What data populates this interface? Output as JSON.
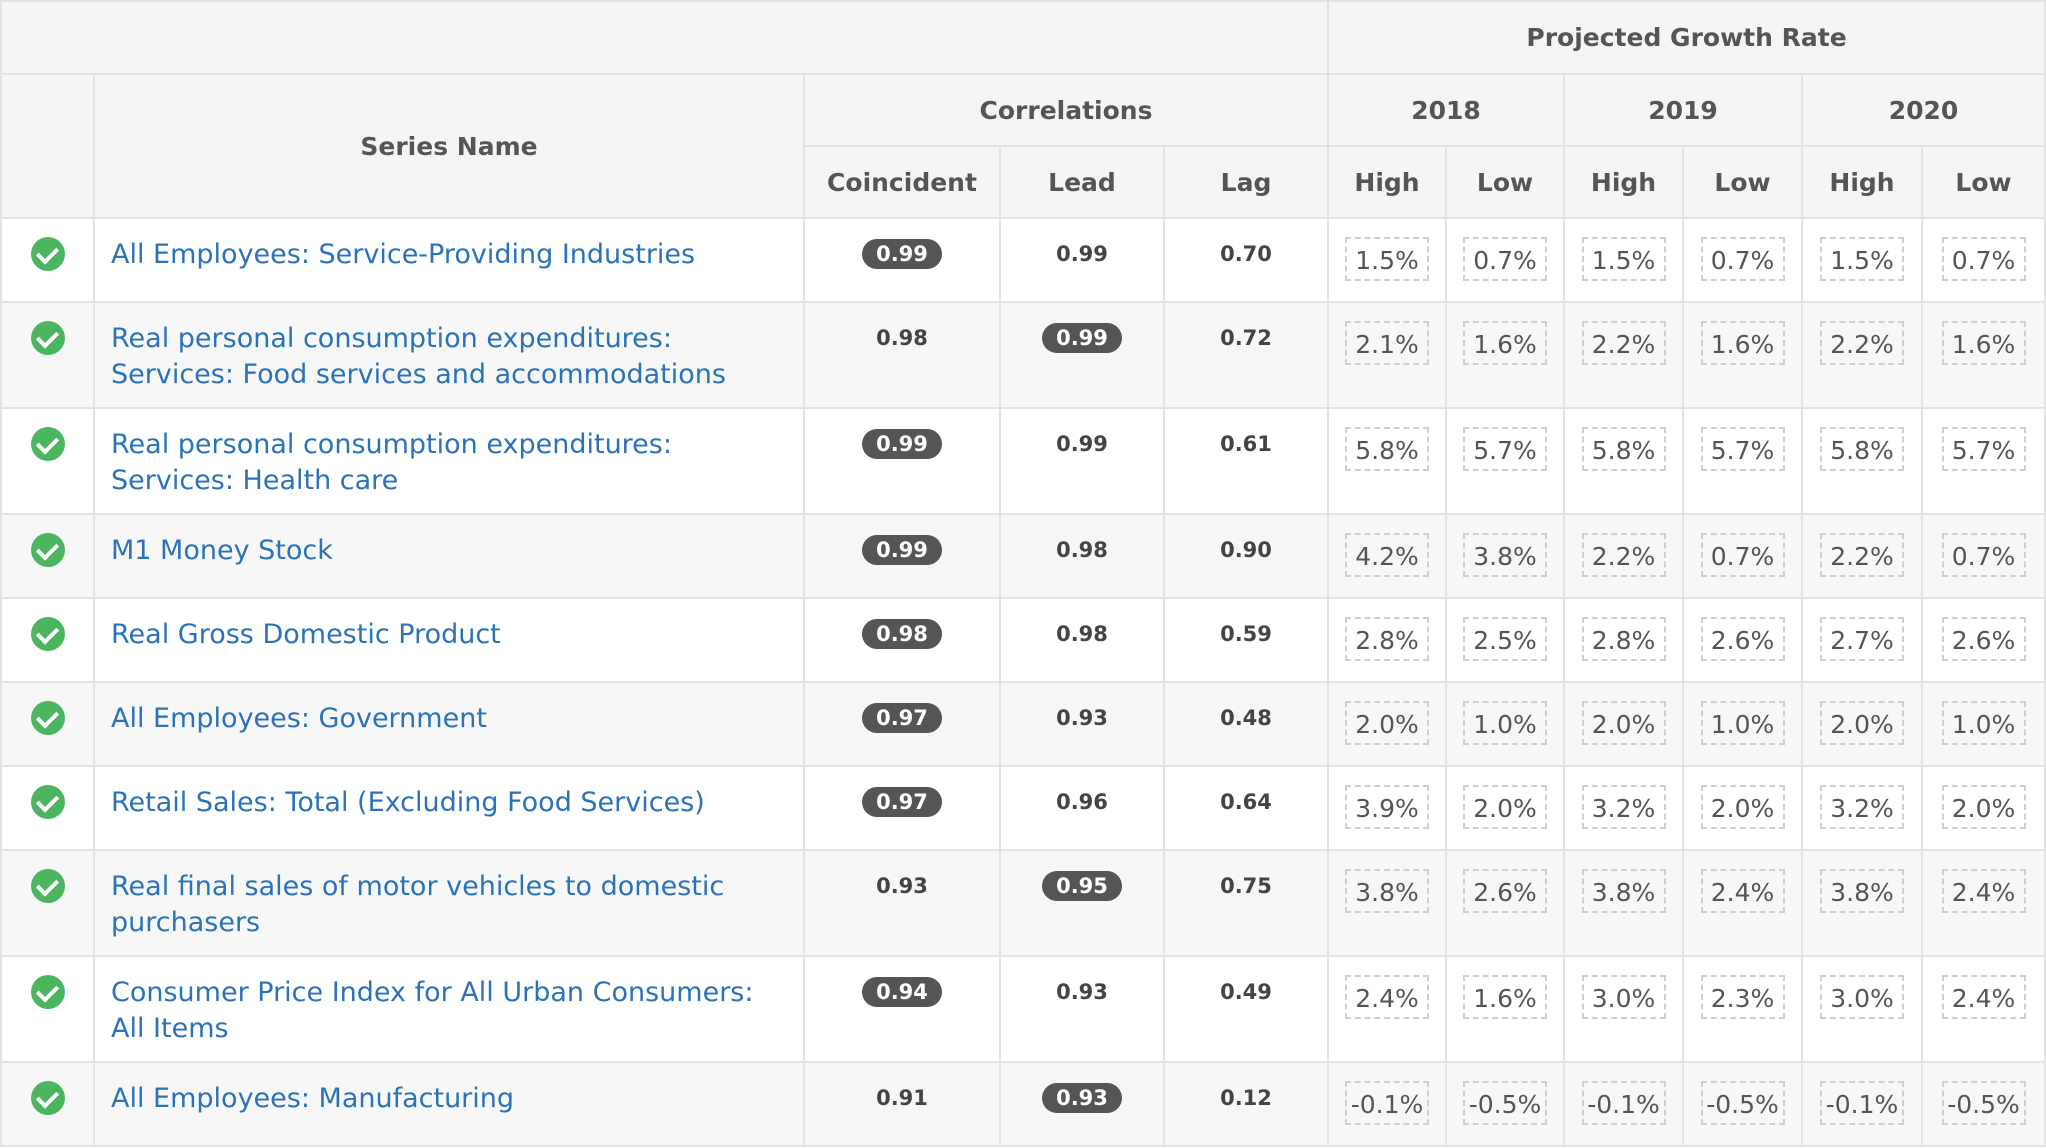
{
  "header": {
    "projected_growth_rate": "Projected Growth Rate",
    "series_name": "Series Name",
    "correlations": "Correlations",
    "coincident": "Coincident",
    "lead": "Lead",
    "lag": "Lag",
    "years": [
      "2018",
      "2019",
      "2020"
    ],
    "high": "High",
    "low": "Low"
  },
  "colors": {
    "link": "#2a73b8",
    "check": "#4cb560",
    "pill": "#555555"
  },
  "rows": [
    {
      "name": "All Employees: Service-Providing Industries",
      "coincident": "0.99",
      "lead": "0.99",
      "lag": "0.70",
      "highlight": "coincident",
      "growth": [
        "1.5%",
        "0.7%",
        "1.5%",
        "0.7%",
        "1.5%",
        "0.7%"
      ]
    },
    {
      "name": "Real personal consumption expenditures: Services: Food services and accommodations",
      "coincident": "0.98",
      "lead": "0.99",
      "lag": "0.72",
      "highlight": "lead",
      "growth": [
        "2.1%",
        "1.6%",
        "2.2%",
        "1.6%",
        "2.2%",
        "1.6%"
      ]
    },
    {
      "name": "Real personal consumption expenditures: Services: Health care",
      "coincident": "0.99",
      "lead": "0.99",
      "lag": "0.61",
      "highlight": "coincident",
      "growth": [
        "5.8%",
        "5.7%",
        "5.8%",
        "5.7%",
        "5.8%",
        "5.7%"
      ]
    },
    {
      "name": "M1 Money Stock",
      "coincident": "0.99",
      "lead": "0.98",
      "lag": "0.90",
      "highlight": "coincident",
      "growth": [
        "4.2%",
        "3.8%",
        "2.2%",
        "0.7%",
        "2.2%",
        "0.7%"
      ]
    },
    {
      "name": "Real Gross Domestic Product",
      "coincident": "0.98",
      "lead": "0.98",
      "lag": "0.59",
      "highlight": "coincident",
      "growth": [
        "2.8%",
        "2.5%",
        "2.8%",
        "2.6%",
        "2.7%",
        "2.6%"
      ]
    },
    {
      "name": "All Employees: Government",
      "coincident": "0.97",
      "lead": "0.93",
      "lag": "0.48",
      "highlight": "coincident",
      "growth": [
        "2.0%",
        "1.0%",
        "2.0%",
        "1.0%",
        "2.0%",
        "1.0%"
      ]
    },
    {
      "name": "Retail Sales: Total (Excluding Food Services)",
      "coincident": "0.97",
      "lead": "0.96",
      "lag": "0.64",
      "highlight": "coincident",
      "growth": [
        "3.9%",
        "2.0%",
        "3.2%",
        "2.0%",
        "3.2%",
        "2.0%"
      ]
    },
    {
      "name": "Real final sales of motor vehicles to domestic purchasers",
      "coincident": "0.93",
      "lead": "0.95",
      "lag": "0.75",
      "highlight": "lead",
      "growth": [
        "3.8%",
        "2.6%",
        "3.8%",
        "2.4%",
        "3.8%",
        "2.4%"
      ]
    },
    {
      "name": "Consumer Price Index for All Urban Consumers: All Items",
      "coincident": "0.94",
      "lead": "0.93",
      "lag": "0.49",
      "highlight": "coincident",
      "growth": [
        "2.4%",
        "1.6%",
        "3.0%",
        "2.3%",
        "3.0%",
        "2.4%"
      ]
    },
    {
      "name": "All Employees: Manufacturing",
      "coincident": "0.91",
      "lead": "0.93",
      "lag": "0.12",
      "highlight": "lead",
      "growth": [
        "-0.1%",
        "-0.5%",
        "-0.1%",
        "-0.5%",
        "-0.1%",
        "-0.5%"
      ]
    }
  ]
}
